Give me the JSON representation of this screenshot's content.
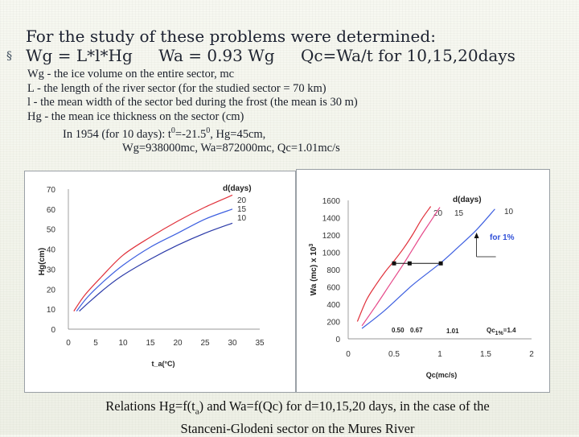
{
  "slide": {
    "title": "For the study of these problems were determined:",
    "bullet_symbol": "§",
    "formula": [
      "Wg = L*l*Hg",
      "Wa = 0.93 Wg",
      "Qc=Wa/t   for 10,15,20days"
    ],
    "definitions": [
      "Wg - the ice volume on the entire sector, mc",
      "L - the length of the river sector (for the studied sector = 70 km)",
      "l - the mean width of the sector bed during the frost (the mean is 30 m)",
      "Hg - the mean ice thickness on the sector (cm)"
    ],
    "year_line_prefix": "In 1954 (for 10 days): t",
    "year_line_sup1": "0",
    "year_line_mid": "=-21.5",
    "year_line_sup2": "0",
    "year_line_suffix": ", Hg=45cm,",
    "result_line": "Wg=938000mc, Wa=872000mc, Qc=1.01mc/s",
    "caption_line1_prefix": "Relations Hg=f(t",
    "caption_line1_sub": "a",
    "caption_line1_suffix": ") and Wa=f(Qc) for d=10,15,20 days, in the case of the",
    "caption_line2": "Stanceni-Glodeni sector on the Mures River"
  },
  "chart_data": [
    {
      "type": "line",
      "xlabel": "t_a(°C)",
      "ylabel": "Hg(cm)",
      "x_ticks": [
        "0",
        "5",
        "10",
        "15",
        "20",
        "25",
        "30",
        "35"
      ],
      "y_ticks": [
        "0",
        "10",
        "20",
        "30",
        "40",
        "50",
        "60",
        "70"
      ],
      "xlim": [
        0,
        35
      ],
      "ylim": [
        0,
        70
      ],
      "legend_title": "d(days)",
      "legend_placement": "top-right",
      "series": [
        {
          "name": "20",
          "color": "#e0303a",
          "x": [
            1,
            3,
            6,
            10,
            15,
            20,
            25,
            30
          ],
          "y": [
            9,
            17,
            26,
            37,
            46,
            54,
            61,
            67
          ]
        },
        {
          "name": "15",
          "color": "#3d5fe0",
          "x": [
            1.5,
            3.5,
            6.5,
            10,
            15,
            20,
            25,
            30
          ],
          "y": [
            9,
            16,
            24,
            32,
            41,
            48,
            55,
            60
          ]
        },
        {
          "name": "10",
          "color": "#2b3aa8",
          "x": [
            2,
            4,
            7,
            10,
            15,
            20,
            25,
            30
          ],
          "y": [
            9,
            14,
            21,
            27,
            35,
            42,
            48,
            53
          ]
        }
      ]
    },
    {
      "type": "line",
      "xlabel": "Qc(mc/s)",
      "ylabel": "Wa (mc) x 10^3",
      "ylabel_text": "Wa (mc) x 10",
      "ylabel_sup": "3",
      "x_ticks": [
        "0",
        "0.5",
        "1",
        "1.5",
        "2"
      ],
      "y_ticks": [
        "0",
        "200",
        "400",
        "600",
        "800",
        "1000",
        "1200",
        "1400",
        "1600"
      ],
      "xlim": [
        0,
        2
      ],
      "ylim": [
        0,
        1600
      ],
      "legend_title": "d(days)",
      "legend_placement": "top-right",
      "series": [
        {
          "name": "20",
          "color": "#e0303a",
          "x": [
            0.1,
            0.2,
            0.3,
            0.4,
            0.5,
            0.6,
            0.7,
            0.8,
            0.9
          ],
          "y": [
            200,
            450,
            620,
            770,
            900,
            1040,
            1200,
            1380,
            1530
          ]
        },
        {
          "name": "15",
          "color": "#e64a8a",
          "x": [
            0.15,
            0.3,
            0.45,
            0.6,
            0.7,
            0.8,
            0.9,
            1.0
          ],
          "y": [
            150,
            380,
            620,
            860,
            1030,
            1200,
            1360,
            1520
          ]
        },
        {
          "name": "10",
          "color": "#3d5fe0",
          "x": [
            0.15,
            0.4,
            0.7,
            1.0,
            1.2,
            1.4,
            1.6
          ],
          "y": [
            120,
            330,
            620,
            870,
            1060,
            1260,
            1500
          ]
        }
      ],
      "points": [
        {
          "x": 0.5,
          "y": 872
        },
        {
          "x": 0.67,
          "y": 872
        },
        {
          "x": 1.01,
          "y": 872
        }
      ],
      "annotations": [
        "0.50",
        "0.67",
        "1.01",
        "Qc1%=1.4",
        "for 1%"
      ],
      "annotation_qc_prefix": "Qc",
      "annotation_qc_sub": "1%",
      "annotation_qc_suffix": "=1.4"
    }
  ]
}
